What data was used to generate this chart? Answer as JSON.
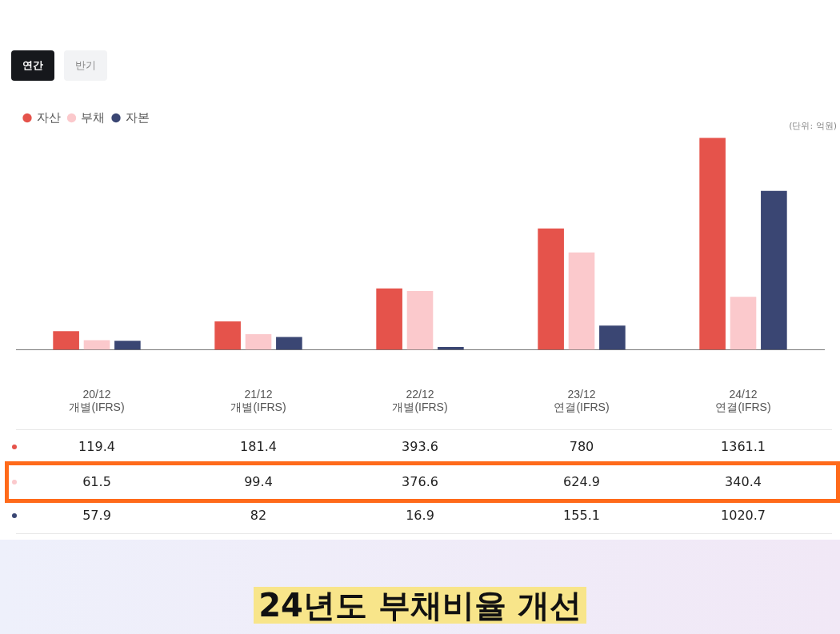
{
  "chart_data": {
    "type": "bar",
    "categories": [
      "20/12\n개별(IFRS)",
      "21/12\n개별(IFRS)",
      "22/12\n개별(IFRS)",
      "23/12\n연결(IFRS)",
      "24/12\n연결(IFRS)"
    ],
    "series": [
      {
        "name": "자산",
        "color": "#e5534b",
        "values": [
          119.4,
          181.4,
          393.6,
          780,
          1361.1
        ]
      },
      {
        "name": "부채",
        "color": "#fbc9cc",
        "values": [
          61.5,
          99.4,
          376.6,
          624.9,
          340.4
        ]
      },
      {
        "name": "자본",
        "color": "#3a4673",
        "values": [
          57.9,
          82,
          16.9,
          155.1,
          1020.7
        ]
      }
    ],
    "data_labels": true,
    "legend": "top left",
    "grid": false,
    "annotations": [
      "(단위: 억원)",
      "24년도 부채비율 개선",
      "연간",
      "반기"
    ]
  }
}
